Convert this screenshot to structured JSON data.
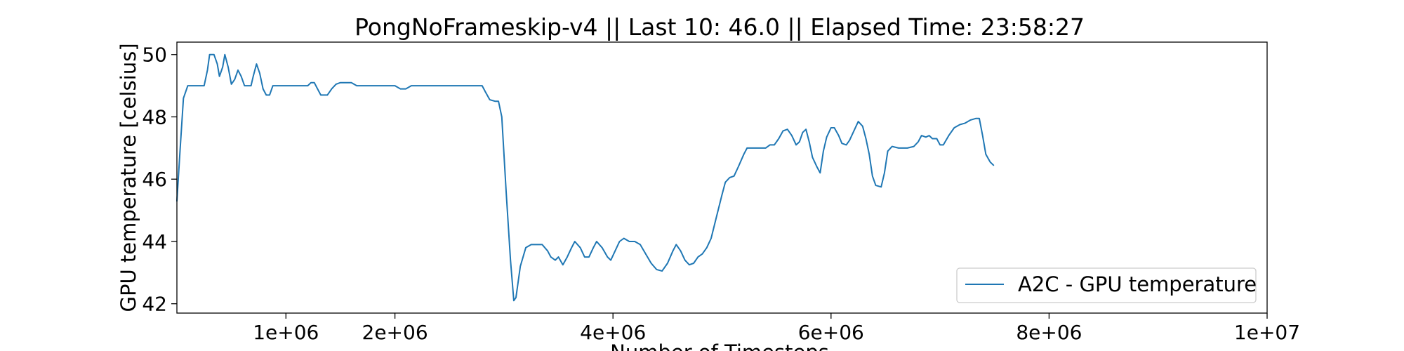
{
  "chart_data": {
    "type": "line",
    "title": "PongNoFrameskip-v4 || Last 10: 46.0 || Elapsed Time: 23:58:27",
    "xlabel": "Number of Timesteps",
    "ylabel": "GPU temperature [celsius]",
    "xlim": [
      0,
      10000000
    ],
    "ylim": [
      41.7,
      50.4
    ],
    "x_ticks": [
      {
        "value": 1000000,
        "label": "1e+06"
      },
      {
        "value": 2000000,
        "label": "2e+06"
      },
      {
        "value": 4000000,
        "label": "4e+06"
      },
      {
        "value": 6000000,
        "label": "6e+06"
      },
      {
        "value": 8000000,
        "label": "8e+06"
      },
      {
        "value": 10000000,
        "label": "1e+07"
      }
    ],
    "y_ticks": [
      {
        "value": 42,
        "label": "42"
      },
      {
        "value": 44,
        "label": "44"
      },
      {
        "value": 46,
        "label": "46"
      },
      {
        "value": 48,
        "label": "48"
      },
      {
        "value": 50,
        "label": "50"
      }
    ],
    "grid": false,
    "legend": {
      "position": "lower-right"
    },
    "color": "#1f77b4",
    "series": [
      {
        "name": "A2C - GPU temperature",
        "points": [
          [
            0,
            45.3
          ],
          [
            30000,
            47.0
          ],
          [
            60000,
            48.6
          ],
          [
            100000,
            49.0
          ],
          [
            200000,
            49.0
          ],
          [
            250000,
            49.0
          ],
          [
            280000,
            49.5
          ],
          [
            300000,
            50.0
          ],
          [
            340000,
            50.0
          ],
          [
            370000,
            49.7
          ],
          [
            390000,
            49.3
          ],
          [
            420000,
            49.6
          ],
          [
            440000,
            50.0
          ],
          [
            470000,
            49.6
          ],
          [
            500000,
            49.05
          ],
          [
            530000,
            49.2
          ],
          [
            560000,
            49.5
          ],
          [
            590000,
            49.3
          ],
          [
            620000,
            49.0
          ],
          [
            680000,
            49.0
          ],
          [
            700000,
            49.3
          ],
          [
            730000,
            49.7
          ],
          [
            760000,
            49.4
          ],
          [
            790000,
            48.9
          ],
          [
            820000,
            48.7
          ],
          [
            850000,
            48.7
          ],
          [
            880000,
            49.0
          ],
          [
            1000000,
            49.0
          ],
          [
            1200000,
            49.0
          ],
          [
            1230000,
            49.1
          ],
          [
            1260000,
            49.1
          ],
          [
            1290000,
            48.9
          ],
          [
            1320000,
            48.7
          ],
          [
            1380000,
            48.7
          ],
          [
            1420000,
            48.9
          ],
          [
            1460000,
            49.05
          ],
          [
            1500000,
            49.1
          ],
          [
            1600000,
            49.1
          ],
          [
            1650000,
            49.0
          ],
          [
            1900000,
            49.0
          ],
          [
            2000000,
            49.0
          ],
          [
            2050000,
            48.9
          ],
          [
            2100000,
            48.9
          ],
          [
            2150000,
            49.0
          ],
          [
            2600000,
            49.0
          ],
          [
            2800000,
            49.0
          ],
          [
            2830000,
            48.8
          ],
          [
            2870000,
            48.55
          ],
          [
            2920000,
            48.5
          ],
          [
            2950000,
            48.5
          ],
          [
            2980000,
            48.0
          ],
          [
            3020000,
            45.6
          ],
          [
            3060000,
            43.4
          ],
          [
            3090000,
            42.1
          ],
          [
            3110000,
            42.2
          ],
          [
            3150000,
            43.2
          ],
          [
            3200000,
            43.8
          ],
          [
            3250000,
            43.9
          ],
          [
            3300000,
            43.9
          ],
          [
            3350000,
            43.9
          ],
          [
            3400000,
            43.7
          ],
          [
            3430000,
            43.5
          ],
          [
            3470000,
            43.4
          ],
          [
            3500000,
            43.5
          ],
          [
            3540000,
            43.25
          ],
          [
            3580000,
            43.5
          ],
          [
            3620000,
            43.8
          ],
          [
            3650000,
            44.0
          ],
          [
            3700000,
            43.8
          ],
          [
            3740000,
            43.5
          ],
          [
            3780000,
            43.5
          ],
          [
            3820000,
            43.8
          ],
          [
            3850000,
            44.0
          ],
          [
            3900000,
            43.8
          ],
          [
            3950000,
            43.5
          ],
          [
            3980000,
            43.4
          ],
          [
            4020000,
            43.7
          ],
          [
            4060000,
            44.0
          ],
          [
            4100000,
            44.1
          ],
          [
            4150000,
            44.0
          ],
          [
            4200000,
            44.0
          ],
          [
            4250000,
            43.9
          ],
          [
            4300000,
            43.6
          ],
          [
            4350000,
            43.3
          ],
          [
            4400000,
            43.1
          ],
          [
            4450000,
            43.05
          ],
          [
            4500000,
            43.3
          ],
          [
            4550000,
            43.7
          ],
          [
            4580000,
            43.9
          ],
          [
            4620000,
            43.7
          ],
          [
            4660000,
            43.4
          ],
          [
            4700000,
            43.25
          ],
          [
            4740000,
            43.3
          ],
          [
            4780000,
            43.5
          ],
          [
            4820000,
            43.6
          ],
          [
            4860000,
            43.8
          ],
          [
            4900000,
            44.1
          ],
          [
            4950000,
            44.8
          ],
          [
            5000000,
            45.5
          ],
          [
            5030000,
            45.9
          ],
          [
            5070000,
            46.05
          ],
          [
            5110000,
            46.1
          ],
          [
            5150000,
            46.4
          ],
          [
            5200000,
            46.8
          ],
          [
            5230000,
            47.0
          ],
          [
            5300000,
            47.0
          ],
          [
            5400000,
            47.0
          ],
          [
            5440000,
            47.1
          ],
          [
            5480000,
            47.1
          ],
          [
            5520000,
            47.3
          ],
          [
            5560000,
            47.55
          ],
          [
            5600000,
            47.6
          ],
          [
            5640000,
            47.4
          ],
          [
            5680000,
            47.1
          ],
          [
            5710000,
            47.2
          ],
          [
            5740000,
            47.5
          ],
          [
            5770000,
            47.6
          ],
          [
            5800000,
            47.2
          ],
          [
            5830000,
            46.7
          ],
          [
            5870000,
            46.4
          ],
          [
            5900000,
            46.2
          ],
          [
            5930000,
            46.9
          ],
          [
            5960000,
            47.35
          ],
          [
            6000000,
            47.65
          ],
          [
            6030000,
            47.65
          ],
          [
            6070000,
            47.4
          ],
          [
            6100000,
            47.15
          ],
          [
            6140000,
            47.1
          ],
          [
            6170000,
            47.25
          ],
          [
            6210000,
            47.55
          ],
          [
            6250000,
            47.85
          ],
          [
            6290000,
            47.7
          ],
          [
            6320000,
            47.3
          ],
          [
            6350000,
            46.8
          ],
          [
            6380000,
            46.1
          ],
          [
            6410000,
            45.8
          ],
          [
            6460000,
            45.75
          ],
          [
            6490000,
            46.2
          ],
          [
            6520000,
            46.9
          ],
          [
            6560000,
            47.05
          ],
          [
            6620000,
            47.0
          ],
          [
            6700000,
            47.0
          ],
          [
            6760000,
            47.05
          ],
          [
            6800000,
            47.2
          ],
          [
            6830000,
            47.4
          ],
          [
            6870000,
            47.35
          ],
          [
            6900000,
            47.4
          ],
          [
            6930000,
            47.3
          ],
          [
            6970000,
            47.3
          ],
          [
            7000000,
            47.1
          ],
          [
            7030000,
            47.1
          ],
          [
            7080000,
            47.4
          ],
          [
            7130000,
            47.65
          ],
          [
            7180000,
            47.75
          ],
          [
            7230000,
            47.8
          ],
          [
            7280000,
            47.9
          ],
          [
            7330000,
            47.95
          ],
          [
            7360000,
            47.95
          ],
          [
            7390000,
            47.4
          ],
          [
            7420000,
            46.8
          ],
          [
            7460000,
            46.55
          ],
          [
            7490000,
            46.45
          ]
        ]
      }
    ]
  }
}
